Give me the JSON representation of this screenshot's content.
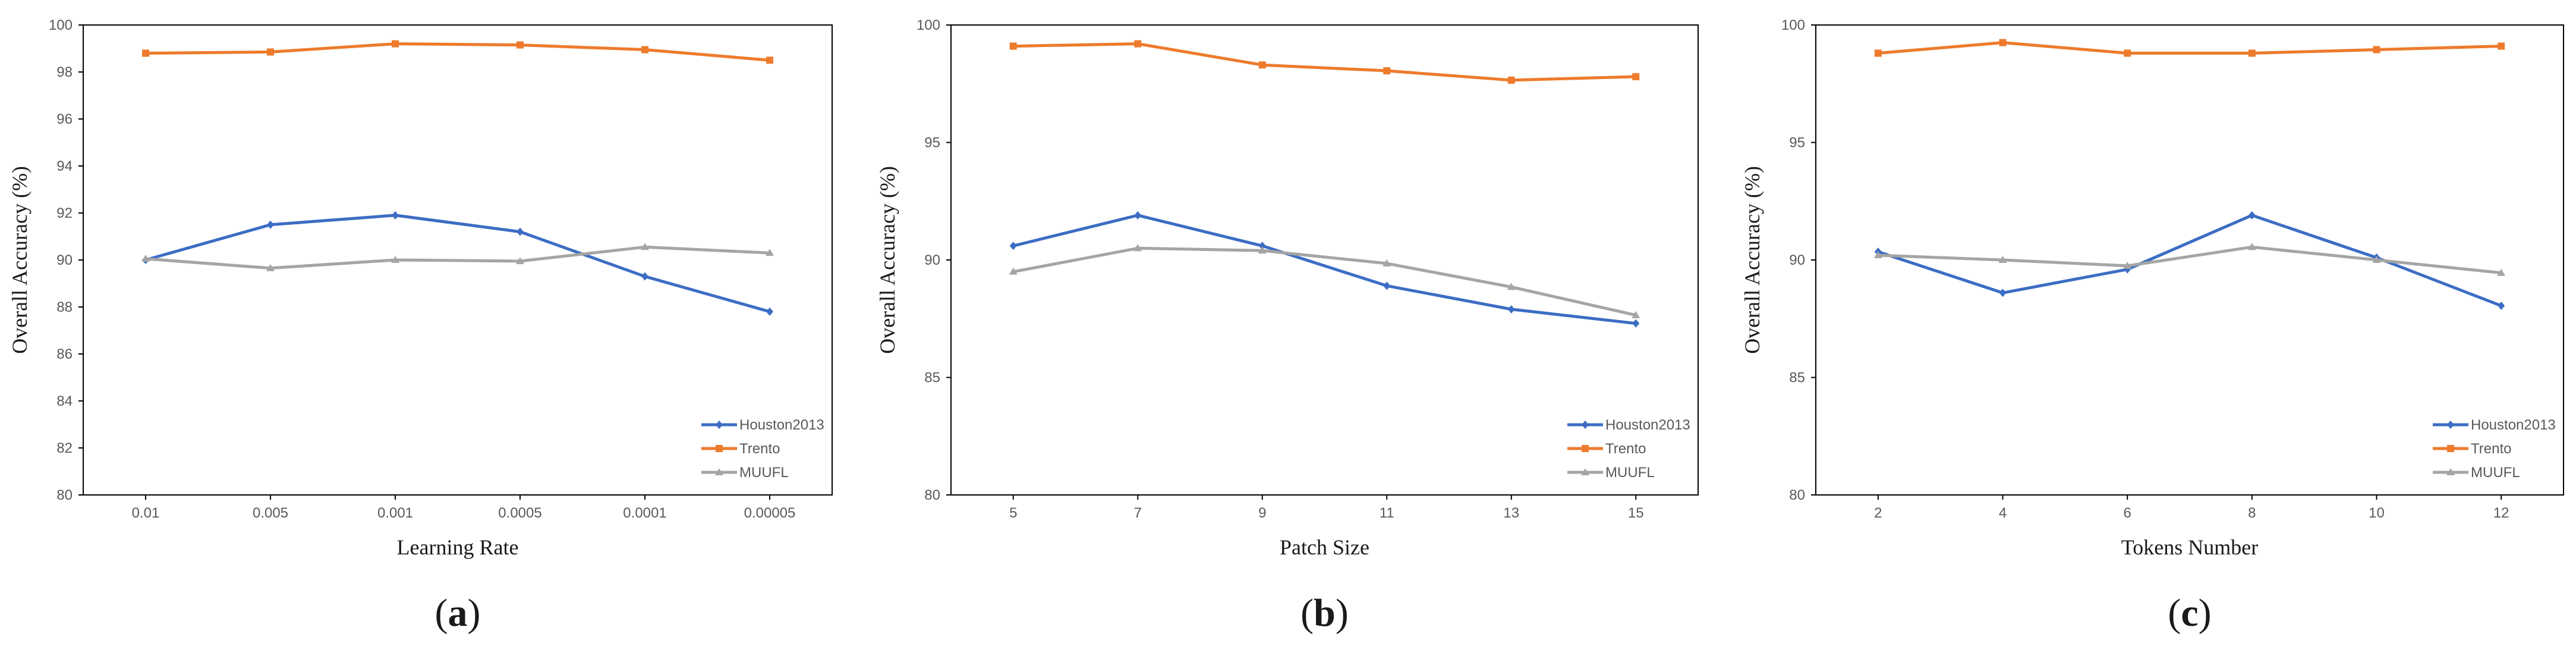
{
  "colors": {
    "houston": "#3C6DC4",
    "trento": "#EE7B2C",
    "muufl": "#A5A5A5",
    "axis": "#000000",
    "text": "#595959"
  },
  "chart_data": [
    {
      "type": "line",
      "panel_label": "(a)",
      "panel_letter": "a",
      "xlabel": "Learning Rate",
      "ylabel": "Overall Accuracy (%)",
      "categories": [
        "0.01",
        "0.005",
        "0.001",
        "0.0005",
        "0.0001",
        "0.00005"
      ],
      "ylim": [
        80,
        100
      ],
      "yticks": [
        80,
        82,
        84,
        86,
        88,
        90,
        92,
        94,
        96,
        98,
        100
      ],
      "legend_position": "bottom-right",
      "series": [
        {
          "name": "Houston2013",
          "marker": "diamond",
          "color_key": "houston",
          "values": [
            90.0,
            91.5,
            91.9,
            91.2,
            89.3,
            87.8
          ]
        },
        {
          "name": "Trento",
          "marker": "square",
          "color_key": "trento",
          "values": [
            98.8,
            98.85,
            99.2,
            99.15,
            98.95,
            98.5
          ]
        },
        {
          "name": "MUUFL",
          "marker": "triangle",
          "color_key": "muufl",
          "values": [
            90.05,
            89.65,
            90.0,
            89.95,
            90.55,
            90.3
          ]
        }
      ]
    },
    {
      "type": "line",
      "panel_label": "(b)",
      "panel_letter": "b",
      "xlabel": "Patch Size",
      "ylabel": "Overall Accuracy (%)",
      "categories": [
        "5",
        "7",
        "9",
        "11",
        "13",
        "15"
      ],
      "ylim": [
        80,
        100
      ],
      "yticks": [
        80,
        85,
        90,
        95,
        100
      ],
      "legend_position": "bottom-right",
      "series": [
        {
          "name": "Houston2013",
          "marker": "diamond",
          "color_key": "houston",
          "values": [
            90.6,
            91.9,
            90.6,
            88.9,
            87.9,
            87.3
          ]
        },
        {
          "name": "Trento",
          "marker": "square",
          "color_key": "trento",
          "values": [
            99.1,
            99.2,
            98.3,
            98.05,
            97.65,
            97.8
          ]
        },
        {
          "name": "MUUFL",
          "marker": "triangle",
          "color_key": "muufl",
          "values": [
            89.5,
            90.5,
            90.4,
            89.85,
            88.85,
            87.65
          ]
        }
      ]
    },
    {
      "type": "line",
      "panel_label": "(c)",
      "panel_letter": "c",
      "xlabel": "Tokens Number",
      "ylabel": "Overall Accuracy (%)",
      "categories": [
        "2",
        "4",
        "6",
        "8",
        "10",
        "12"
      ],
      "ylim": [
        80,
        100
      ],
      "yticks": [
        80,
        85,
        90,
        95,
        100
      ],
      "legend_position": "bottom-right",
      "series": [
        {
          "name": "Houston2013",
          "marker": "diamond",
          "color_key": "houston",
          "values": [
            90.35,
            88.6,
            89.6,
            91.9,
            90.1,
            88.05
          ]
        },
        {
          "name": "Trento",
          "marker": "square",
          "color_key": "trento",
          "values": [
            98.8,
            99.25,
            98.8,
            98.8,
            98.95,
            99.1
          ]
        },
        {
          "name": "MUUFL",
          "marker": "triangle",
          "color_key": "muufl",
          "values": [
            90.2,
            90.0,
            89.75,
            90.55,
            90.0,
            89.45
          ]
        }
      ]
    }
  ]
}
